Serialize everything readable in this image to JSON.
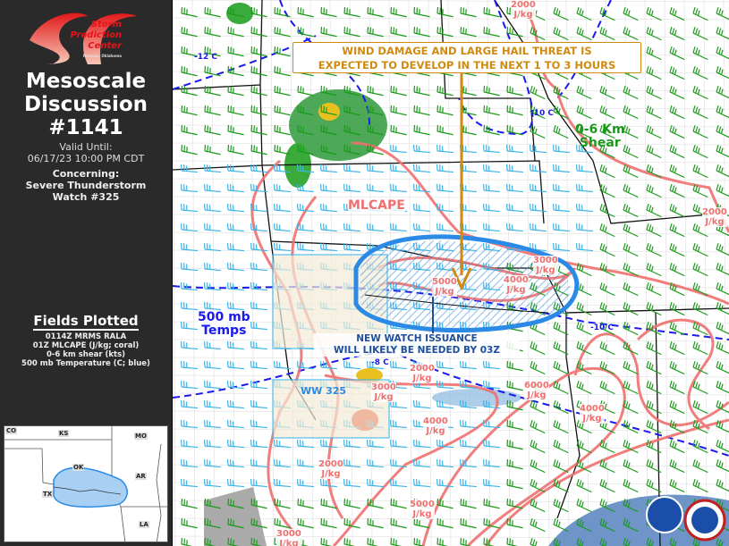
{
  "sidebar": {
    "logo": {
      "line1": "Storm",
      "line2": "Prediction",
      "line3": "Center",
      "line4": "Norman, Oklahoma"
    },
    "title_line1": "Mesoscale",
    "title_line2": "Discussion",
    "title_line3": "#1141",
    "valid_label": "Valid Until:",
    "valid_time": "06/17/23 10:00 PM CDT",
    "concerning_label": "Concerning:",
    "concerning_line1": "Severe Thunderstorm",
    "concerning_line2": "Watch #325",
    "fields_heading": "Fields Plotted",
    "fields": [
      "0114Z MRMS RALA",
      "01Z MLCAPE (J/kg; coral)",
      "0-6 km shear (kts)",
      "500 mb Temperature (C; blue)"
    ],
    "inset_states": [
      "CO",
      "KS",
      "MO",
      "OK",
      "AR",
      "TX",
      "LA"
    ]
  },
  "map": {
    "banner_line1": "WIND DAMAGE AND LARGE HAIL THREAT IS",
    "banner_line2": "EXPECTED TO DEVELOP IN THE NEXT 1 TO 3 HOURS",
    "new_watch_line1": "NEW WATCH ISSUANCE",
    "new_watch_line2": "WILL LIKELY BE NEEDED BY 03Z",
    "shear_label_line1": "0-6 Km",
    "shear_label_line2": "Shear",
    "mlcape_label": "MLCAPE",
    "temps_label_line1": "500 mb",
    "temps_label_line2": "Temps",
    "watch_label": "WW 325",
    "temps": [
      "-12 C",
      "-10 C",
      "-10 C",
      "-8 C"
    ],
    "cape_labels": [
      {
        "value": "2000",
        "unit": "J/kg"
      },
      {
        "value": "2000",
        "unit": "J/kg"
      },
      {
        "value": "2000",
        "unit": "J/kg"
      },
      {
        "value": "2000",
        "unit": "J/kg"
      },
      {
        "value": "3000",
        "unit": "J/kg"
      },
      {
        "value": "3000",
        "unit": "J/kg"
      },
      {
        "value": "3000",
        "unit": "J/kg"
      },
      {
        "value": "4000",
        "unit": "J/kg"
      },
      {
        "value": "4000",
        "unit": "J/kg"
      },
      {
        "value": "4000",
        "unit": "J/kg"
      },
      {
        "value": "5000",
        "unit": "J/kg"
      },
      {
        "value": "5000",
        "unit": "J/kg"
      },
      {
        "value": "6000",
        "unit": "J/kg"
      }
    ],
    "colors": {
      "cape": "#f07070",
      "temp": "#1a1aee",
      "shear_strong": "#1a9a1a",
      "shear_weak": "#3cb4e6",
      "md_area": "#2a8ae6",
      "banner": "#d08a10",
      "watch_text": "#1f4e9a"
    }
  }
}
